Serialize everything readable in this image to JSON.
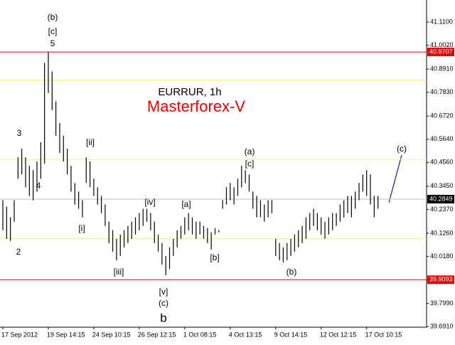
{
  "chart_data": {
    "type": "ohlc",
    "title": "EURRUR, 1h",
    "subtitle": "Masterforex-V",
    "categories": [
      "17 Sep 2012",
      null,
      null,
      null,
      null,
      null,
      null,
      null,
      null,
      null,
      null,
      null,
      "19 Sep 14:15",
      null,
      null,
      null,
      null,
      null,
      null,
      null,
      null,
      null,
      null,
      null,
      "24 Sep 10:15",
      null,
      null,
      null,
      null,
      null,
      null,
      null,
      null,
      null,
      null,
      null,
      "26 Sep 12:15",
      null,
      null,
      null,
      null,
      null,
      null,
      null,
      null,
      null,
      null,
      null,
      "1 Oct 08:15",
      null,
      null,
      null,
      null,
      null,
      null,
      null,
      null,
      null,
      null,
      null,
      "4 Oct 13:15",
      null,
      null,
      null,
      null,
      null,
      null,
      null,
      null,
      null,
      null,
      null,
      "9 Oct 14:15",
      null,
      null,
      null,
      null,
      null,
      null,
      null,
      null,
      null,
      null,
      null,
      "12 Oct 12:15",
      null,
      null,
      null,
      null,
      null,
      null,
      null,
      null,
      null,
      null,
      null,
      "17 Oct 10:15",
      null,
      null,
      null
    ],
    "high": [
      40.28,
      40.25,
      40.2,
      40.28,
      40.48,
      40.52,
      40.48,
      40.44,
      40.42,
      40.46,
      40.55,
      40.92,
      40.97,
      40.88,
      40.74,
      40.64,
      40.58,
      40.52,
      40.44,
      40.36,
      40.32,
      40.28,
      40.48,
      40.46,
      40.38,
      40.34,
      40.3,
      40.26,
      40.18,
      40.14,
      40.1,
      40.12,
      40.14,
      40.16,
      40.18,
      40.2,
      40.22,
      40.24,
      40.24,
      40.22,
      40.18,
      40.12,
      40.08,
      40.02,
      40.06,
      40.1,
      40.14,
      40.16,
      40.2,
      40.22,
      40.2,
      40.18,
      40.18,
      40.16,
      40.15,
      40.13,
      40.15,
      40.14,
      40.28,
      40.34,
      40.36,
      40.34,
      40.38,
      40.44,
      40.42,
      40.4,
      40.32,
      40.3,
      40.28,
      40.26,
      40.28,
      40.28,
      40.1,
      40.08,
      40.06,
      40.08,
      40.1,
      40.12,
      40.14,
      40.16,
      40.2,
      40.22,
      40.24,
      40.22,
      40.2,
      40.18,
      40.2,
      40.22,
      40.22,
      40.26,
      40.28,
      40.3,
      40.3,
      40.32,
      40.36,
      40.4,
      40.42,
      40.4,
      40.3,
      40.3
    ],
    "low": [
      40.14,
      40.1,
      40.09,
      40.18,
      40.38,
      40.4,
      40.34,
      40.3,
      40.28,
      40.32,
      40.38,
      40.45,
      40.78,
      40.7,
      40.58,
      40.5,
      40.46,
      40.4,
      40.32,
      40.26,
      40.24,
      40.2,
      40.36,
      40.34,
      40.3,
      40.26,
      40.22,
      40.16,
      40.08,
      40.04,
      40.0,
      40.02,
      40.06,
      40.08,
      40.1,
      40.12,
      40.14,
      40.16,
      40.18,
      40.14,
      40.08,
      40.04,
      39.98,
      39.93,
      39.96,
      40.02,
      40.06,
      40.1,
      40.12,
      40.14,
      40.12,
      40.1,
      40.12,
      40.1,
      40.08,
      40.05,
      40.12,
      40.13,
      40.24,
      40.26,
      40.28,
      40.26,
      40.3,
      40.34,
      40.36,
      40.32,
      40.24,
      40.2,
      40.2,
      40.18,
      40.2,
      40.22,
      40.02,
      40.0,
      39.99,
      40.0,
      40.02,
      40.04,
      40.06,
      40.08,
      40.1,
      40.14,
      40.16,
      40.14,
      40.12,
      40.1,
      40.12,
      40.14,
      40.16,
      40.18,
      40.2,
      40.22,
      40.2,
      40.24,
      40.28,
      40.32,
      40.3,
      40.26,
      40.2,
      40.24
    ],
    "color": "#000000",
    "ylim": [
      39.688,
      41.213
    ],
    "yticks": [
      {
        "value": 41.11,
        "label": "41.1100"
      },
      {
        "value": 41.002,
        "label": "41.0020"
      },
      {
        "value": 40.891,
        "label": "40.8910"
      },
      {
        "value": 40.783,
        "label": "40.7830"
      },
      {
        "value": 40.672,
        "label": "40.6720"
      },
      {
        "value": 40.564,
        "label": "40.5640"
      },
      {
        "value": 40.456,
        "label": "40.4560"
      },
      {
        "value": 40.345,
        "label": "40.3450"
      },
      {
        "value": 40.237,
        "label": "40.2370"
      },
      {
        "value": 40.126,
        "label": "40.1260"
      },
      {
        "value": 40.018,
        "label": "40.0180"
      },
      {
        "value": 39.909,
        "label": "39.9090"
      },
      {
        "value": 39.799,
        "label": "39.7990"
      },
      {
        "value": 39.691,
        "label": "39.6910"
      }
    ],
    "levels": [
      {
        "value": 40.9707,
        "color": "#e00000"
      },
      {
        "value": 39.9093,
        "color": "#e00000"
      }
    ],
    "fib_levels": [
      {
        "value": 40.84,
        "color": "#f0f080"
      },
      {
        "value": 40.47,
        "color": "#f0f080"
      },
      {
        "value": 40.1,
        "color": "#f0f080"
      }
    ],
    "current_price": 40.2849,
    "annotations": [
      "(b)",
      "[c]",
      "5",
      "3",
      "4",
      "2",
      "[i]",
      "[ii]",
      "[iii]",
      "[iv]",
      "[v]",
      "(c)",
      "b",
      "[a]",
      "[b]",
      "(a)",
      "[c]",
      "(b)",
      "(c)"
    ]
  }
}
